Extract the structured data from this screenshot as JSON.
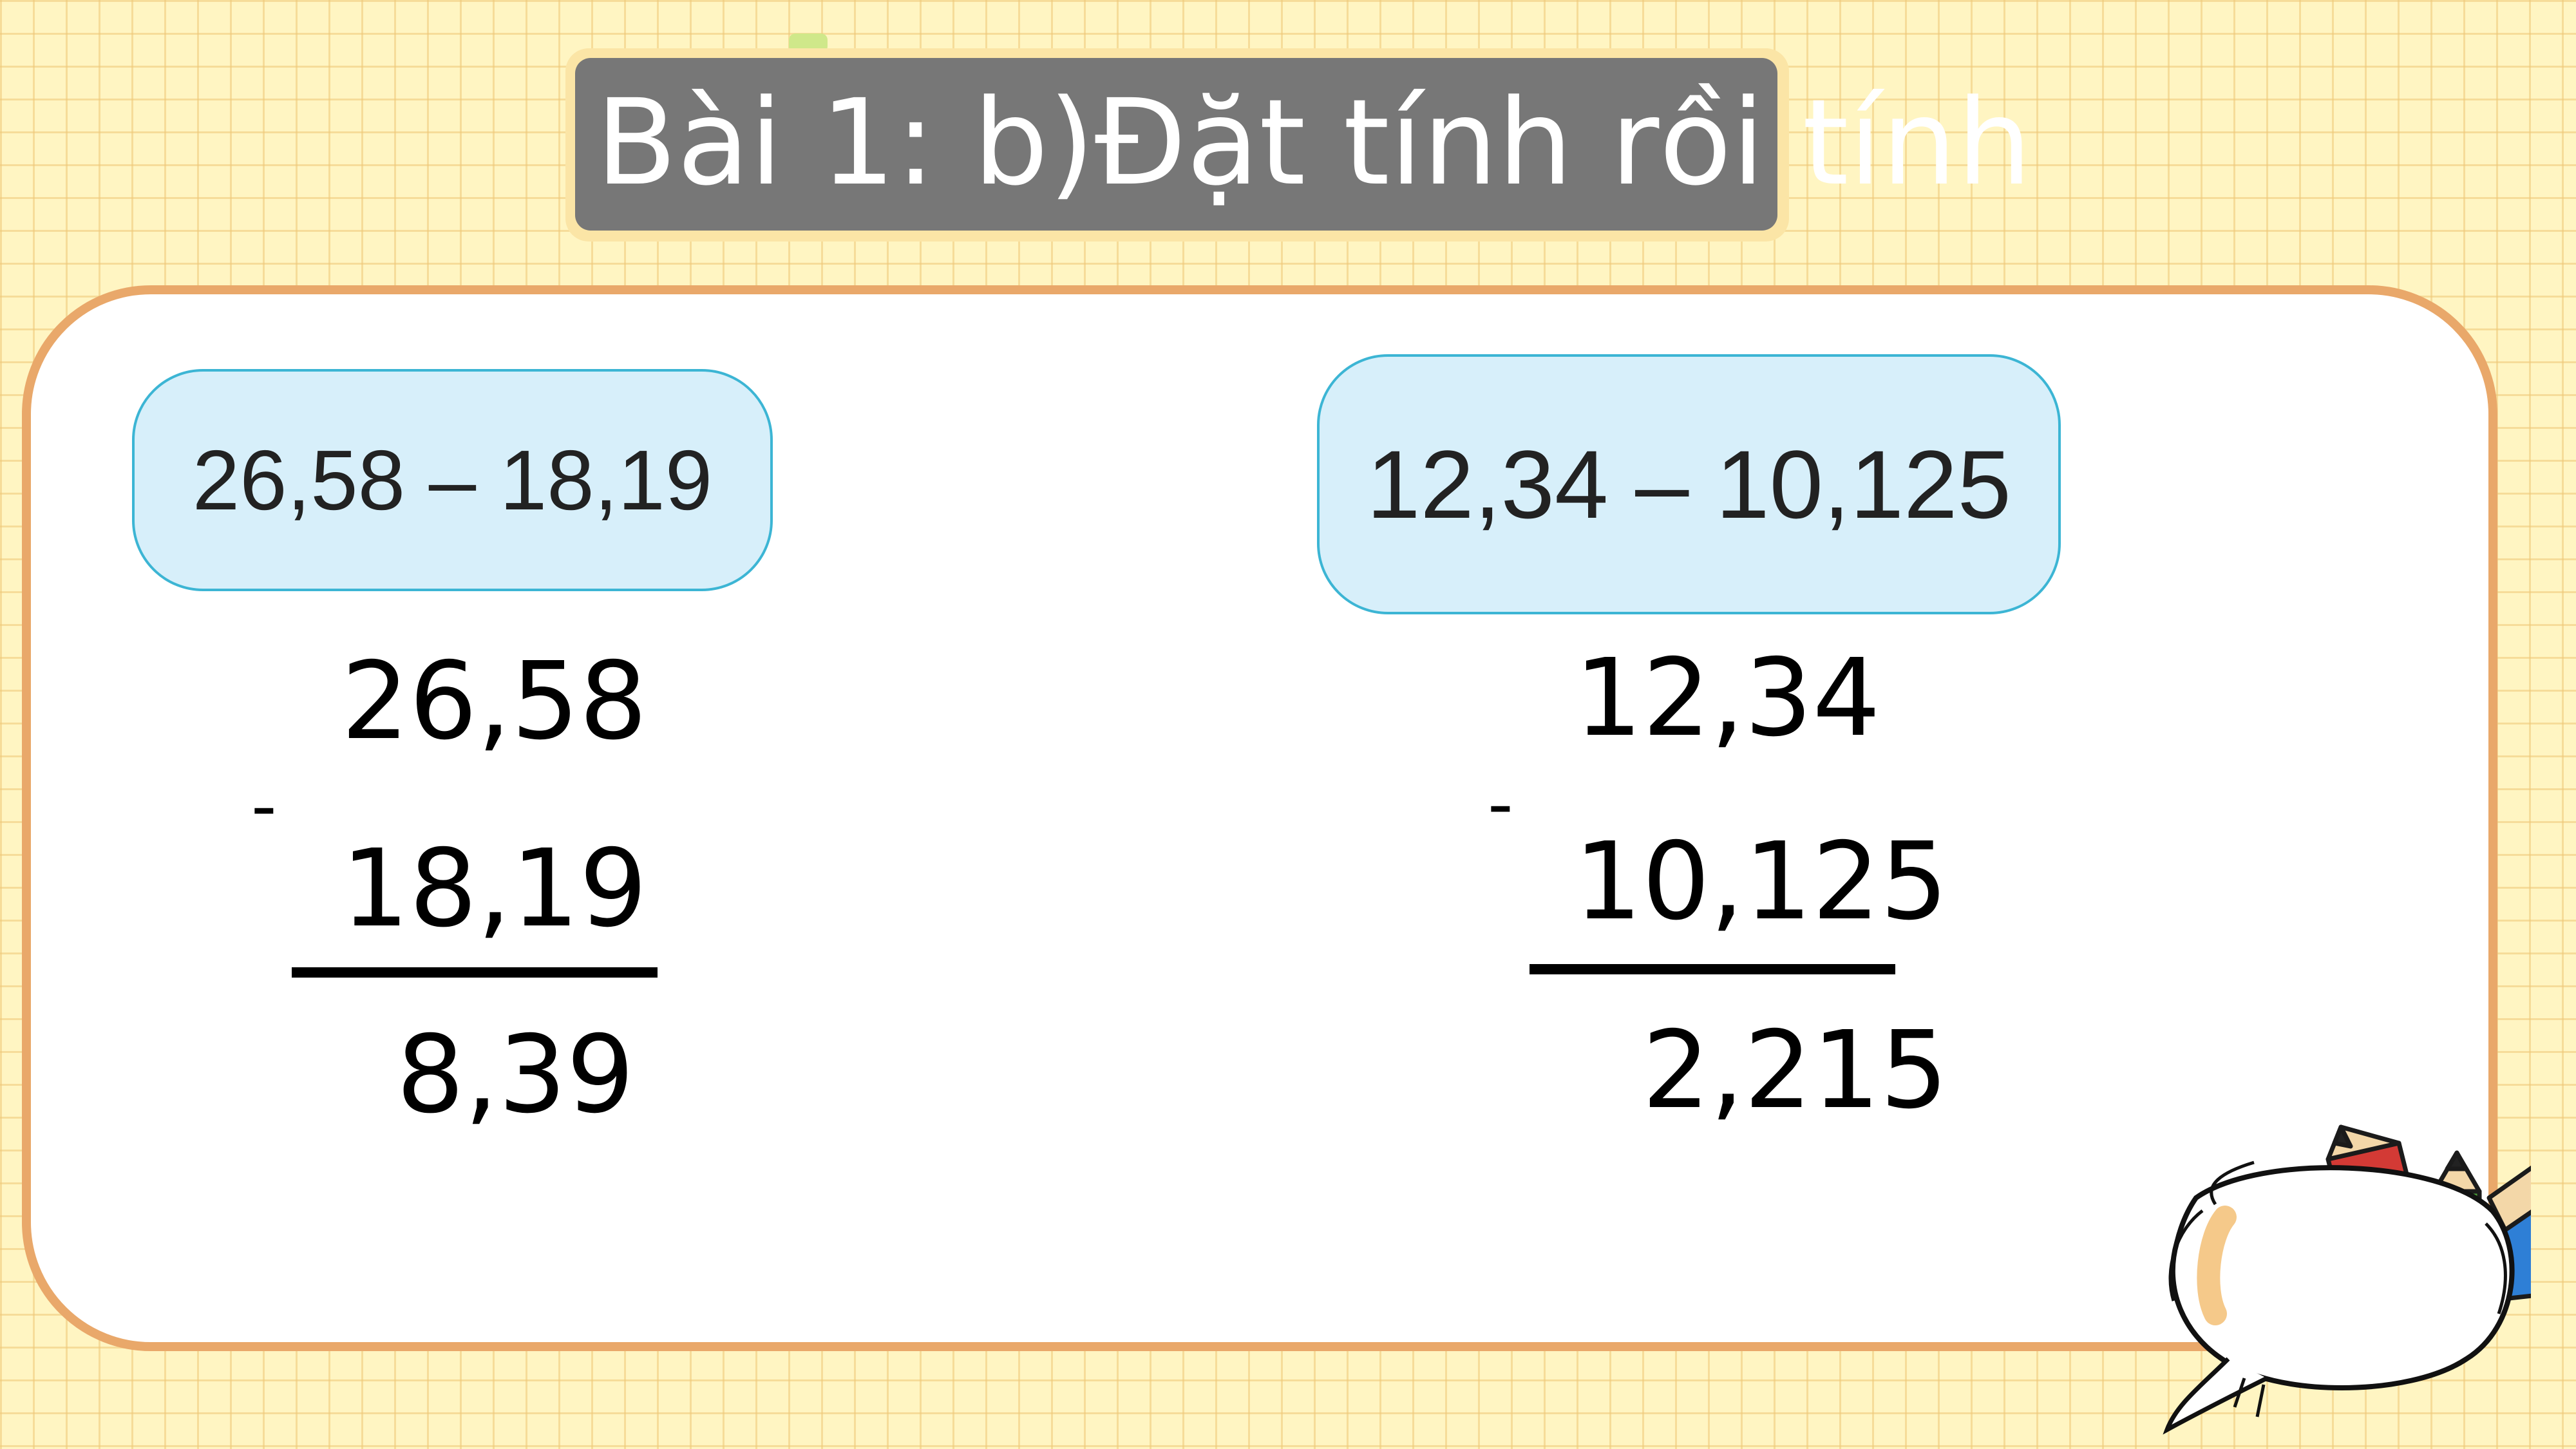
{
  "title": "Bài 1: b)Đặt tính rồi tính",
  "exercises": [
    {
      "prompt": "26,58 – 18,19",
      "minuend": "26,58",
      "operator": "-",
      "subtrahend": "18,19",
      "result": "8,39"
    },
    {
      "prompt": "12,34 – 10,125",
      "minuend": "12,34",
      "operator": "-",
      "subtrahend": "10,125",
      "result": "2,215"
    }
  ],
  "colors": {
    "background": "#fff5c2",
    "grid_line": "#eec878",
    "title_box": "#777777",
    "board_border": "#e9a86a",
    "prompt_fill": "#d7effa",
    "prompt_border": "#3cb5d4"
  },
  "decoration": {
    "icon": "pencils-speech-bubble-icon"
  }
}
